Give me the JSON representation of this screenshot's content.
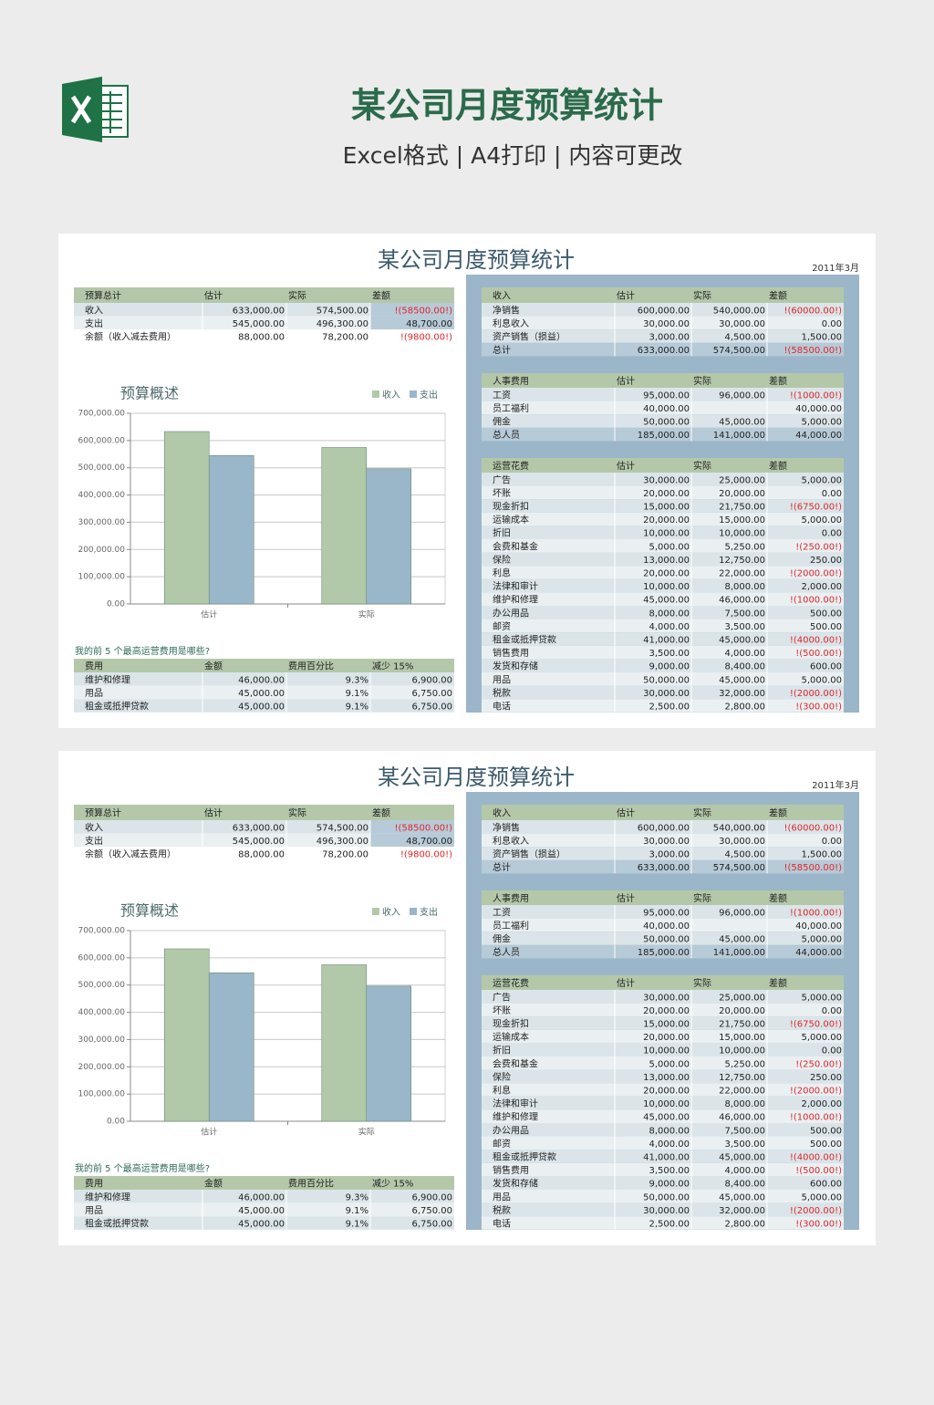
{
  "header": {
    "title": "某公司月度预算统计",
    "subtitle": "Excel格式 | A4打印 | 内容可更改"
  },
  "sheet": {
    "title": "某公司月度预算统计",
    "date": "2011年3月",
    "summary": {
      "header": [
        "预算总计",
        "估计",
        "实际",
        "差额"
      ],
      "rows": [
        [
          "收入",
          "633,000.00",
          "574,500.00",
          "!(58500.00!)"
        ],
        [
          "支出",
          "545,000.00",
          "496,300.00",
          "48,700.00"
        ],
        [
          "余额（收入减去费用）",
          "88,000.00",
          "78,200.00",
          "!(9800.00!)"
        ]
      ]
    },
    "chart_data": {
      "type": "bar",
      "title": "预算概述",
      "categories": [
        "估计",
        "实际"
      ],
      "series": [
        {
          "name": "收入",
          "color": "#b1c9a9",
          "values": [
            633000,
            574500
          ]
        },
        {
          "name": "支出",
          "color": "#9ab6c9",
          "values": [
            545000,
            496300
          ]
        }
      ],
      "ylim": [
        0,
        700000
      ],
      "yticks": [
        {
          "value": 0,
          "label": "0.00"
        },
        {
          "value": 100000,
          "label": "100,000.00"
        },
        {
          "value": 200000,
          "label": "200,000.00"
        },
        {
          "value": 300000,
          "label": "300,000.00"
        },
        {
          "value": 400000,
          "label": "400,000.00"
        },
        {
          "value": 500000,
          "label": "500,000.00"
        },
        {
          "value": 600000,
          "label": "600,000.00"
        },
        {
          "value": 700000,
          "label": "700,000.00"
        }
      ],
      "grid": true,
      "legend": "top-right"
    },
    "top_question": "我的前 5 个最高运营费用是哪些?",
    "top_expenses": {
      "header": [
        "费用",
        "金额",
        "费用百分比",
        "减少 15%"
      ],
      "rows": [
        [
          "维护和修理",
          "46,000.00",
          "9.3%",
          "6,900.00"
        ],
        [
          "用品",
          "45,000.00",
          "9.1%",
          "6,750.00"
        ],
        [
          "租金或抵押贷款",
          "45,000.00",
          "9.1%",
          "6,750.00"
        ]
      ]
    },
    "income": {
      "header": [
        "收入",
        "估计",
        "实际",
        "差额"
      ],
      "rows": [
        [
          "净销售",
          "600,000.00",
          "540,000.00",
          "!(60000.00!)"
        ],
        [
          "利息收入",
          "30,000.00",
          "30,000.00",
          "0.00"
        ],
        [
          "资产销售（损益）",
          "3,000.00",
          "4,500.00",
          "1,500.00"
        ],
        [
          "总计",
          "633,000.00",
          "574,500.00",
          "!(58500.00!)"
        ]
      ]
    },
    "personnel": {
      "header": [
        "人事费用",
        "估计",
        "实际",
        "差额"
      ],
      "rows": [
        [
          "工资",
          "95,000.00",
          "96,000.00",
          "!(1000.00!)"
        ],
        [
          "员工福利",
          "40,000.00",
          null,
          "40,000.00"
        ],
        [
          "佣金",
          "50,000.00",
          "45,000.00",
          "5,000.00"
        ],
        [
          "总人员",
          "185,000.00",
          "141,000.00",
          "44,000.00"
        ]
      ]
    },
    "operating": {
      "header": [
        "运营花费",
        "估计",
        "实际",
        "差额"
      ],
      "rows": [
        [
          "广告",
          "30,000.00",
          "25,000.00",
          "5,000.00"
        ],
        [
          "坏账",
          "20,000.00",
          "20,000.00",
          "0.00"
        ],
        [
          "现金折扣",
          "15,000.00",
          "21,750.00",
          "!(6750.00!)"
        ],
        [
          "运输成本",
          "20,000.00",
          "15,000.00",
          "5,000.00"
        ],
        [
          "折旧",
          "10,000.00",
          "10,000.00",
          "0.00"
        ],
        [
          "会费和基金",
          "5,000.00",
          "5,250.00",
          "!(250.00!)"
        ],
        [
          "保险",
          "13,000.00",
          "12,750.00",
          "250.00"
        ],
        [
          "利息",
          "20,000.00",
          "22,000.00",
          "!(2000.00!)"
        ],
        [
          "法律和审计",
          "10,000.00",
          "8,000.00",
          "2,000.00"
        ],
        [
          "维护和修理",
          "45,000.00",
          "46,000.00",
          "!(1000.00!)"
        ],
        [
          "办公用品",
          "8,000.00",
          "7,500.00",
          "500.00"
        ],
        [
          "邮资",
          "4,000.00",
          "3,500.00",
          "500.00"
        ],
        [
          "租金或抵押贷款",
          "41,000.00",
          "45,000.00",
          "!(4000.00!)"
        ],
        [
          "销售费用",
          "3,500.00",
          "4,000.00",
          "!(500.00!)"
        ],
        [
          "发货和存储",
          "9,000.00",
          "8,400.00",
          "600.00"
        ],
        [
          "用品",
          "50,000.00",
          "45,000.00",
          "5,000.00"
        ],
        [
          "税款",
          "30,000.00",
          "32,000.00",
          "!(2000.00!)"
        ],
        [
          "电话",
          "2,500.00",
          "2,800.00",
          "!(300.00!)"
        ]
      ]
    }
  }
}
